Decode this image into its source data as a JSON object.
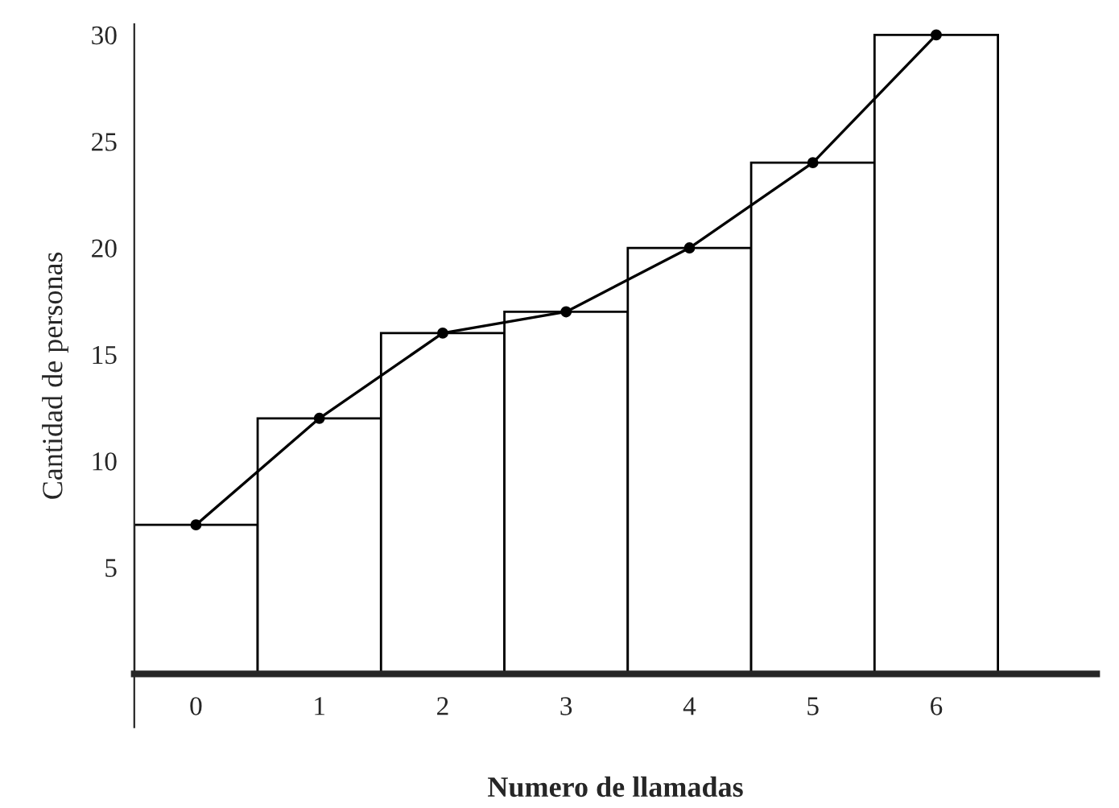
{
  "chart_data": {
    "type": "bar",
    "xlabel": "Numero de llamadas",
    "ylabel": "Cantidad de personas",
    "categories": [
      "0",
      "1",
      "2",
      "3",
      "4",
      "5",
      "6"
    ],
    "series": [
      {
        "color": "#ffffff",
        "values": [
          7,
          12,
          16,
          17,
          20,
          24,
          30
        ]
      },
      {
        "type": "line",
        "color": "#000000",
        "values": [
          7,
          12,
          16,
          17,
          20,
          24,
          30
        ]
      }
    ],
    "ylim": [
      -2.5,
      30.5
    ],
    "yticks": [
      5,
      10,
      15,
      20,
      25,
      30
    ],
    "grid": false,
    "legend": false,
    "marker": "circle",
    "line_style": "solid"
  }
}
